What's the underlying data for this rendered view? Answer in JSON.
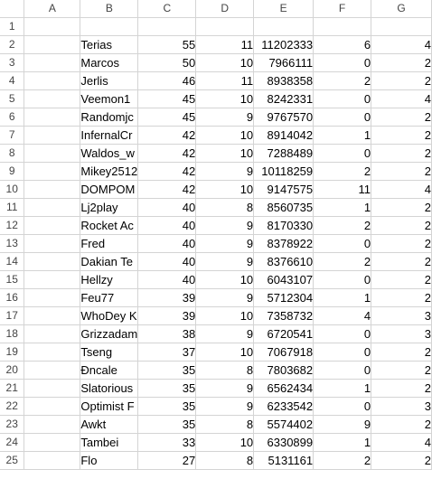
{
  "columns": [
    "A",
    "B",
    "C",
    "D",
    "E",
    "F",
    "G"
  ],
  "rows": [
    {
      "num": "1",
      "b": "",
      "c": "",
      "d": "",
      "e": "",
      "f": "",
      "g": ""
    },
    {
      "num": "2",
      "b": "Terias",
      "c": "55",
      "d": "11",
      "e": "11202333",
      "f": "6",
      "g": "4"
    },
    {
      "num": "3",
      "b": "Marcos",
      "c": "50",
      "d": "10",
      "e": "7966111",
      "f": "0",
      "g": "2"
    },
    {
      "num": "4",
      "b": "Jerlis",
      "c": "46",
      "d": "11",
      "e": "8938358",
      "f": "2",
      "g": "2"
    },
    {
      "num": "5",
      "b": "Veemon1",
      "c": "45",
      "d": "10",
      "e": "8242331",
      "f": "0",
      "g": "4"
    },
    {
      "num": "6",
      "b": "Randomjc",
      "c": "45",
      "d": "9",
      "e": "9767570",
      "f": "0",
      "g": "2"
    },
    {
      "num": "7",
      "b": "InfernalCr",
      "c": "42",
      "d": "10",
      "e": "8914042",
      "f": "1",
      "g": "2"
    },
    {
      "num": "8",
      "b": "Waldos_w",
      "c": "42",
      "d": "10",
      "e": "7288489",
      "f": "0",
      "g": "2"
    },
    {
      "num": "9",
      "b": "Mikey2512",
      "c": "42",
      "d": "9",
      "e": "10118259",
      "f": "2",
      "g": "2"
    },
    {
      "num": "10",
      "b": "DOMPOM",
      "c": "42",
      "d": "10",
      "e": "9147575",
      "f": "11",
      "g": "4"
    },
    {
      "num": "11",
      "b": "Lj2play",
      "c": "40",
      "d": "8",
      "e": "8560735",
      "f": "1",
      "g": "2"
    },
    {
      "num": "12",
      "b": "Rocket Ac",
      "c": "40",
      "d": "9",
      "e": "8170330",
      "f": "2",
      "g": "2"
    },
    {
      "num": "13",
      "b": "Fred",
      "c": "40",
      "d": "9",
      "e": "8378922",
      "f": "0",
      "g": "2"
    },
    {
      "num": "14",
      "b": "Dakian Te",
      "c": "40",
      "d": "9",
      "e": "8376610",
      "f": "2",
      "g": "2"
    },
    {
      "num": "15",
      "b": "Hellzy",
      "c": "40",
      "d": "10",
      "e": "6043107",
      "f": "0",
      "g": "2"
    },
    {
      "num": "16",
      "b": "Feu77",
      "c": "39",
      "d": "9",
      "e": "5712304",
      "f": "1",
      "g": "2"
    },
    {
      "num": "17",
      "b": "WhoDey K",
      "c": "39",
      "d": "10",
      "e": "7358732",
      "f": "4",
      "g": "3"
    },
    {
      "num": "18",
      "b": "Grizzadam",
      "c": "38",
      "d": "9",
      "e": "6720541",
      "f": "0",
      "g": "3"
    },
    {
      "num": "19",
      "b": "Tseng",
      "c": "37",
      "d": "10",
      "e": "7067918",
      "f": "0",
      "g": "2"
    },
    {
      "num": "20",
      "b": "Đncale",
      "c": "35",
      "d": "8",
      "e": "7803682",
      "f": "0",
      "g": "2"
    },
    {
      "num": "21",
      "b": "Slatorious",
      "c": "35",
      "d": "9",
      "e": "6562434",
      "f": "1",
      "g": "2"
    },
    {
      "num": "22",
      "b": "Optimist F",
      "c": "35",
      "d": "9",
      "e": "6233542",
      "f": "0",
      "g": "3"
    },
    {
      "num": "23",
      "b": "Awkt",
      "c": "35",
      "d": "8",
      "e": "5574402",
      "f": "9",
      "g": "2"
    },
    {
      "num": "24",
      "b": "Tambei",
      "c": "33",
      "d": "10",
      "e": "6330899",
      "f": "1",
      "g": "4"
    },
    {
      "num": "25",
      "b": "Flo",
      "c": "27",
      "d": "8",
      "e": "5131161",
      "f": "2",
      "g": "2"
    }
  ]
}
